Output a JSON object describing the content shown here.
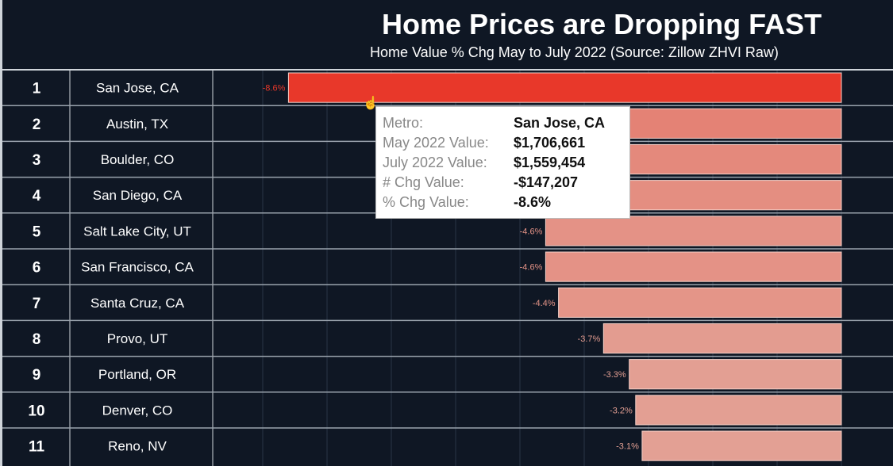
{
  "title": "Home Prices are Dropping FAST",
  "subtitle": "Home Value % Chg May to July 2022 (Source: Zillow ZHVI Raw)",
  "chart_data": {
    "type": "bar",
    "orientation": "horizontal",
    "title": "Home Prices are Dropping FAST",
    "subtitle": "Home Value % Chg May to July 2022 (Source: Zillow ZHVI Raw)",
    "ranks": [
      "1",
      "2",
      "3",
      "4",
      "5",
      "6",
      "7",
      "8",
      "9",
      "10",
      "11"
    ],
    "categories": [
      "San Jose, CA",
      "Austin, TX",
      "Boulder, CO",
      "San Diego, CA",
      "Salt Lake City, UT",
      "San Francisco, CA",
      "Santa Cruz, CA",
      "Provo, UT",
      "Portland, OR",
      "Denver, CO",
      "Reno, NV"
    ],
    "values": [
      -8.6,
      -5.6,
      -5.2,
      -4.9,
      -4.6,
      -4.6,
      -4.4,
      -3.7,
      -3.3,
      -3.2,
      -3.1
    ],
    "data_labels": [
      "-8.6%",
      "",
      "",
      "",
      "-4.6%",
      "-4.6%",
      "-4.4%",
      "-3.7%",
      "-3.3%",
      "-3.2%",
      "-3.1%"
    ],
    "xlim": [
      -9.5,
      0.8
    ],
    "grid": true,
    "colors": {
      "strong": "#e8382a",
      "weak": "#e3a094",
      "background": "#0f1724"
    }
  },
  "tooltip": {
    "rows": [
      {
        "label": "Metro:",
        "value": "San Jose, CA"
      },
      {
        "label": "May 2022 Value:",
        "value": "$1,706,661"
      },
      {
        "label": "July 2022 Value:",
        "value": "$1,559,454"
      },
      {
        "label": "# Chg Value:",
        "value": "-$147,207"
      },
      {
        "label": "% Chg Value:",
        "value": "-8.6%"
      }
    ]
  }
}
